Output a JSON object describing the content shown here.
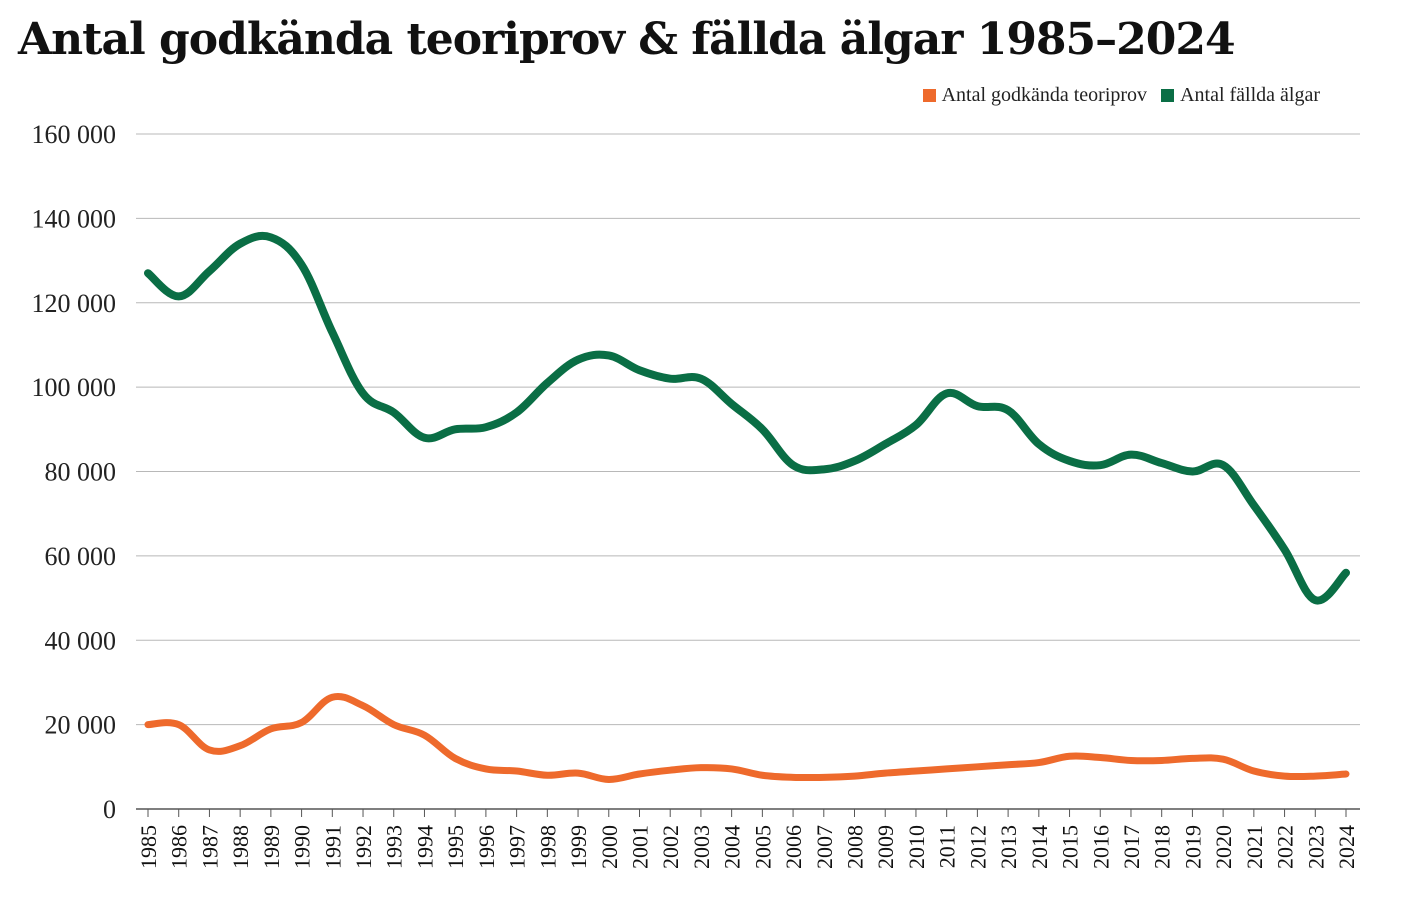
{
  "title": "Antal godkända teoriprov & fällda älgar 1985–2024",
  "legend": [
    {
      "label": "Antal godkända teoriprov",
      "color": "#ee6a2c"
    },
    {
      "label": "Antal fällda älgar",
      "color": "#0a6e45"
    }
  ],
  "chart_data": {
    "type": "line",
    "title": "Antal godkända teoriprov & fällda älgar 1985–2024",
    "xlabel": "",
    "ylabel": "",
    "ylim": [
      0,
      160000
    ],
    "yticks": [
      0,
      20000,
      40000,
      60000,
      80000,
      100000,
      120000,
      140000,
      160000
    ],
    "ytick_labels": [
      "0",
      "20 000",
      "40 000",
      "60 000",
      "80 000",
      "100 000",
      "120 000",
      "140 000",
      "160 000"
    ],
    "grid": true,
    "legend_position": "top-right",
    "x": [
      "1985",
      "1986",
      "1987",
      "1988",
      "1989",
      "1990",
      "1991",
      "1992",
      "1993",
      "1994",
      "1995",
      "1996",
      "1997",
      "1998",
      "1999",
      "2000",
      "2001",
      "2002",
      "2003",
      "2004",
      "2005",
      "2006",
      "2007",
      "2008",
      "2009",
      "2010",
      "2011",
      "2012",
      "2013",
      "2014",
      "2015",
      "2016",
      "2017",
      "2018",
      "2019",
      "2020",
      "2021",
      "2022",
      "2023",
      "2024"
    ],
    "series": [
      {
        "name": "Antal godkända teoriprov",
        "color": "#ee6a2c",
        "values": [
          20000,
          20000,
          14000,
          15000,
          19000,
          20500,
          26500,
          24500,
          20000,
          17500,
          12000,
          9500,
          9000,
          8000,
          8500,
          7000,
          8300,
          9200,
          9800,
          9500,
          8000,
          7500,
          7500,
          7800,
          8500,
          9000,
          9500,
          10000,
          10500,
          11000,
          12500,
          12200,
          11500,
          11500,
          12000,
          11800,
          9000,
          7800,
          7800,
          8300
        ]
      },
      {
        "name": "Antal fällda älgar",
        "color": "#0a6e45",
        "values": [
          127000,
          121500,
          127500,
          134000,
          135500,
          129000,
          113000,
          98500,
          94000,
          88000,
          90000,
          90500,
          94000,
          101000,
          106500,
          107500,
          104000,
          102000,
          102000,
          96000,
          90000,
          81500,
          80500,
          82500,
          86500,
          91000,
          98500,
          95500,
          94500,
          86500,
          82500,
          81500,
          84000,
          82000,
          80000,
          81500,
          72000,
          61500,
          49500,
          56000
        ]
      }
    ]
  }
}
